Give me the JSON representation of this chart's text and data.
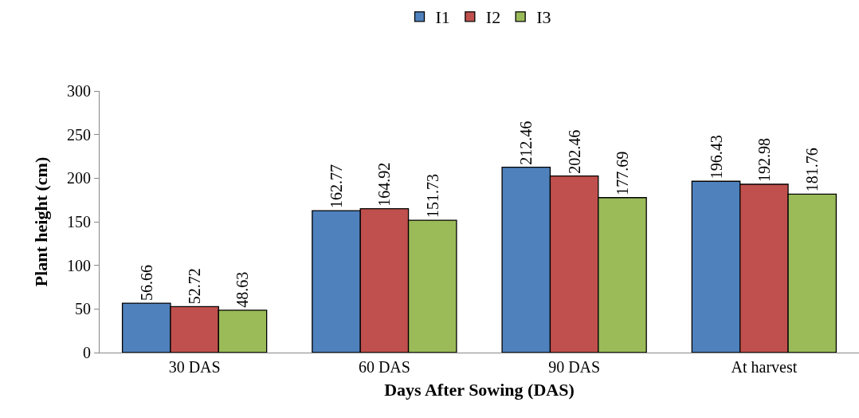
{
  "chart_data": {
    "type": "bar",
    "xlabel": "Days After Sowing (DAS)",
    "ylabel": "Plant height (cm)",
    "categories": [
      "30 DAS",
      "60 DAS",
      "90 DAS",
      "At harvest"
    ],
    "series": [
      {
        "name": "I1",
        "color": "#4f81bd",
        "values": [
          56.66,
          162.77,
          212.46,
          196.43
        ]
      },
      {
        "name": "I2",
        "color": "#c0504d",
        "values": [
          52.72,
          164.92,
          202.46,
          192.98
        ]
      },
      {
        "name": "I3",
        "color": "#9bbb59",
        "values": [
          48.63,
          151.73,
          177.69,
          181.76
        ]
      }
    ],
    "ylim": [
      0,
      300
    ],
    "yticks": [
      0,
      50,
      100,
      150,
      200,
      250,
      300
    ],
    "grid": false,
    "legend": "top",
    "data_labels": true
  }
}
